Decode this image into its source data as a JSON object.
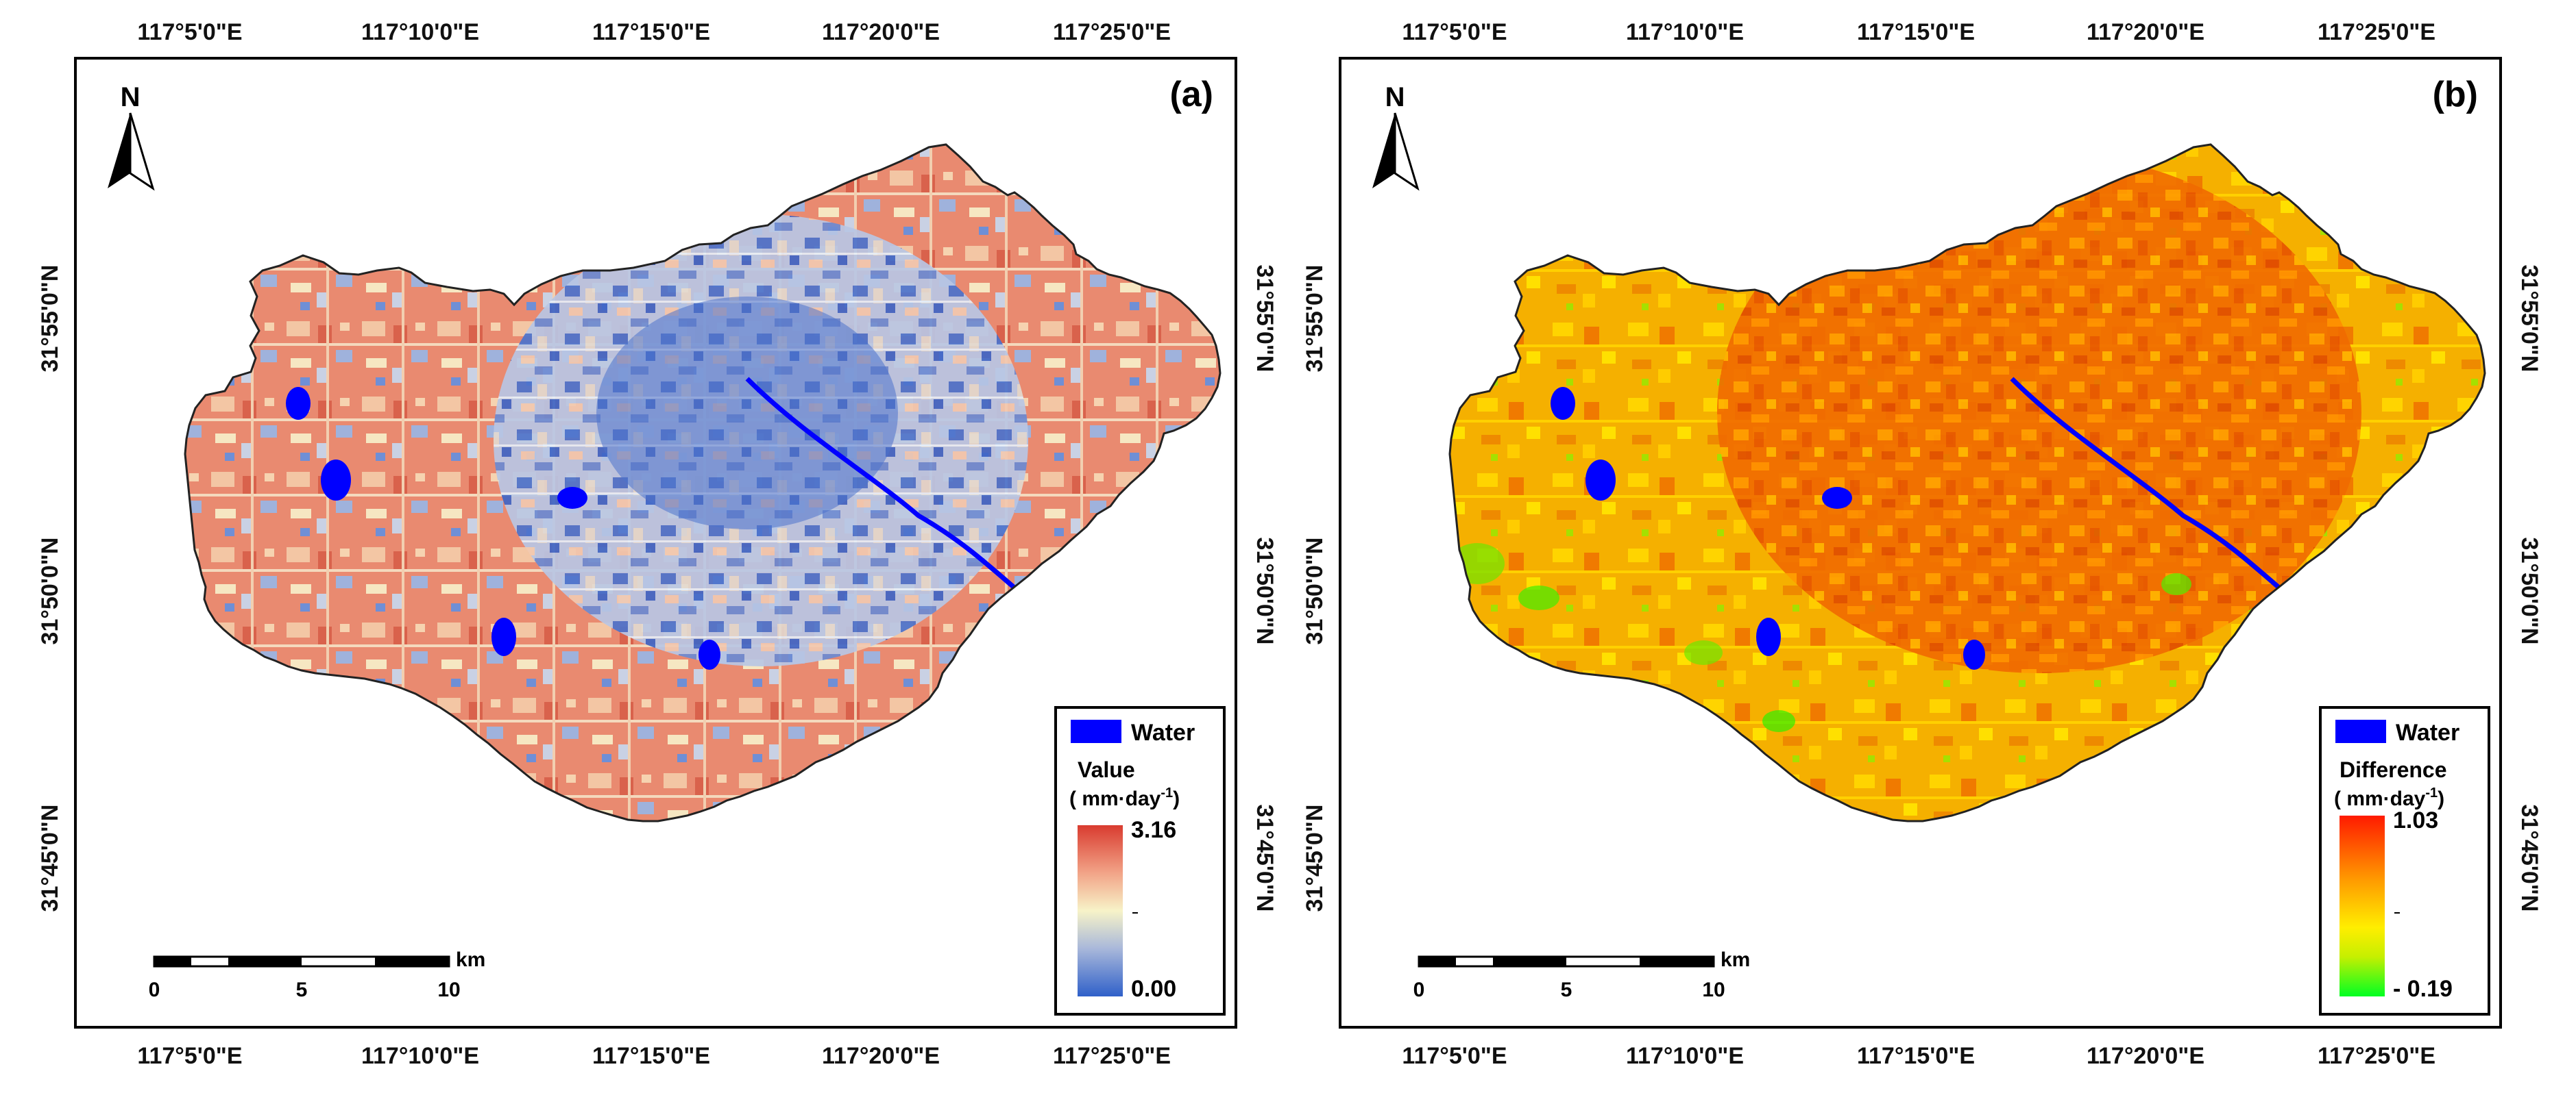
{
  "panels": [
    {
      "letter": "(a)",
      "north": "N",
      "top_ticks": [
        "117°5'0\"E",
        "117°10'0\"E",
        "117°15'0\"E",
        "117°20'0\"E",
        "117°25'0\"E"
      ],
      "bottom_ticks": [
        "117°5'0\"E",
        "117°10'0\"E",
        "117°15'0\"E",
        "117°20'0\"E",
        "117°25'0\"E"
      ],
      "left_ticks": [
        "31°55'0\"N",
        "31°50'0\"N",
        "31°45'0\"N"
      ],
      "right_ticks": [
        "31°55'0\"N",
        "31°50'0\"N",
        "31°45'0\"N"
      ],
      "scalebar": {
        "unit": "km",
        "labels": [
          "0",
          "5",
          "10"
        ]
      },
      "legend": {
        "water_label": "Water",
        "water_color": "#0000ff",
        "title": "Value",
        "unit_prefix": "( mm·day",
        "unit_exp": "-1",
        "unit_suffix": ")",
        "max": "3.16",
        "min": "0.00",
        "colors": [
          "#d93b2f",
          "#f2a488",
          "#f7f3c8",
          "#a9b8da",
          "#2f60c9"
        ]
      }
    },
    {
      "letter": "(b)",
      "north": "N",
      "top_ticks": [
        "117°5'0\"E",
        "117°10'0\"E",
        "117°15'0\"E",
        "117°20'0\"E",
        "117°25'0\"E"
      ],
      "bottom_ticks": [
        "117°5'0\"E",
        "117°10'0\"E",
        "117°15'0\"E",
        "117°20'0\"E",
        "117°25'0\"E"
      ],
      "left_ticks": [
        "31°55'0\"N",
        "31°50'0\"N",
        "31°45'0\"N"
      ],
      "right_ticks": [
        "31°55'0\"N",
        "31°50'0\"N",
        "31°45'0\"N"
      ],
      "scalebar": {
        "unit": "km",
        "labels": [
          "0",
          "5",
          "10"
        ]
      },
      "legend": {
        "water_label": "Water",
        "water_color": "#0000ff",
        "title": "Difference",
        "unit_prefix": "( mm·day",
        "unit_exp": "-1",
        "unit_suffix": ")",
        "max": "1.03",
        "min": "- 0.19",
        "colors": [
          "#ff1a00",
          "#ff9900",
          "#ffee00",
          "#c6ef00",
          "#00ff22"
        ]
      }
    }
  ]
}
